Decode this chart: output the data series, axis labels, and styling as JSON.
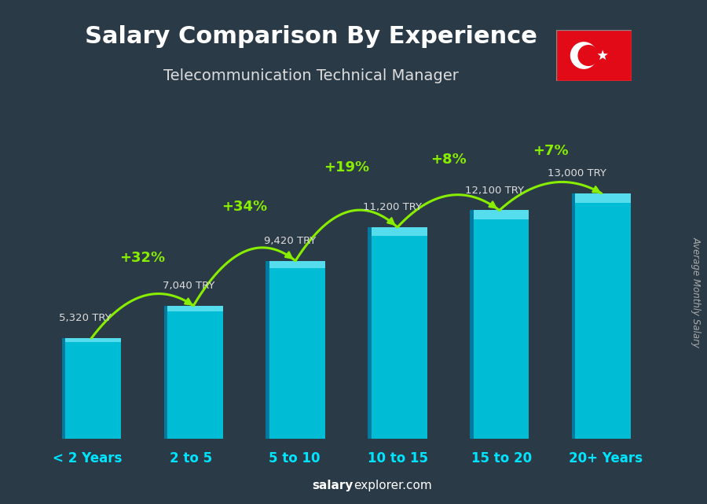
{
  "title_line1": "Salary Comparison By Experience",
  "title_line2": "Telecommunication Technical Manager",
  "categories": [
    "< 2 Years",
    "2 to 5",
    "5 to 10",
    "10 to 15",
    "15 to 20",
    "20+ Years"
  ],
  "values": [
    5320,
    7040,
    9420,
    11200,
    12100,
    13000
  ],
  "bar_color": "#00bcd4",
  "pct_changes": [
    null,
    "+32%",
    "+34%",
    "+19%",
    "+8%",
    "+7%"
  ],
  "salary_labels": [
    "5,320 TRY",
    "7,040 TRY",
    "9,420 TRY",
    "11,200 TRY",
    "12,100 TRY",
    "13,000 TRY"
  ],
  "arrow_color": "#88ee00",
  "pct_color": "#88ee00",
  "salary_label_color": "#dddddd",
  "title_color": "#ffffff",
  "subtitle_color": "#dddddd",
  "xlabel_color": "#00e5ff",
  "ylabel_text": "Average Monthly Salary",
  "ylabel_color": "#aaaaaa",
  "footer_salary_color": "#ffffff",
  "footer_explorer_color": "#aaaaaa",
  "background_color": "#2b3a47",
  "ylim": [
    0,
    15500
  ],
  "bar_width": 0.58,
  "flag_color": "#e30a17"
}
